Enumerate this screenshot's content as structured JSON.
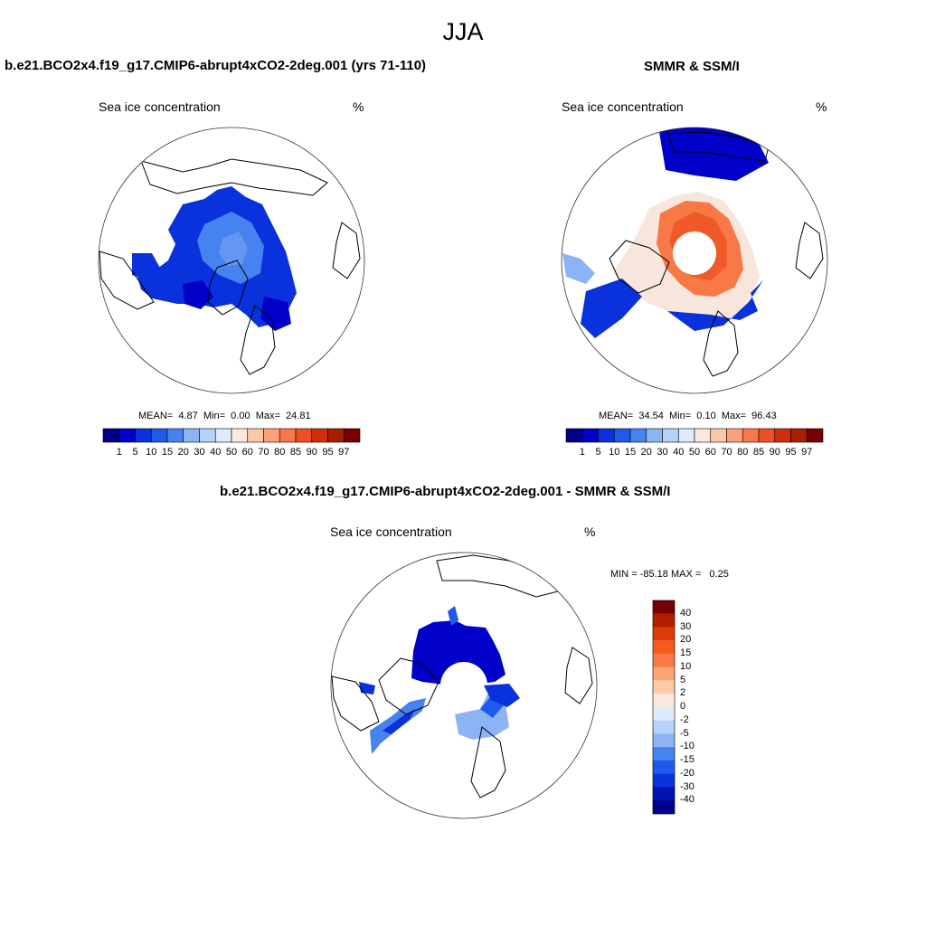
{
  "figure": {
    "season": "JJA"
  },
  "panels": [
    {
      "id": "model",
      "title": "b.e21.BCO2x4.f19_g17.CMIP6-abrupt4xCO2-2deg.001 (yrs 71-110)",
      "left_label": "Sea ice concentration",
      "right_label": "%",
      "stats": {
        "mean_label": "MEAN=",
        "mean": "4.87",
        "min_label": "Min=",
        "min": "0.00",
        "max_label": "Max=",
        "max": "24.81"
      }
    },
    {
      "id": "obs",
      "title": "SMMR & SSM/I",
      "left_label": "Sea ice concentration",
      "right_label": "%",
      "stats": {
        "mean_label": "MEAN=",
        "mean": "34.54",
        "min_label": "Min=",
        "min": "0.10",
        "max_label": "Max=",
        "max": "96.43"
      }
    },
    {
      "id": "diff",
      "title": "b.e21.BCO2x4.f19_g17.CMIP6-abrupt4xCO2-2deg.001 - SMMR & SSM/I",
      "left_label": "Sea ice concentration",
      "right_label": "%",
      "minmax_text": "MIN = -85.18 MAX =   0.25"
    }
  ],
  "colorbar_abs": {
    "ticks": [
      "1",
      "5",
      "10",
      "15",
      "20",
      "30",
      "40",
      "50",
      "60",
      "70",
      "80",
      "85",
      "90",
      "95",
      "97"
    ],
    "colors": [
      "#00008b",
      "#0000c8",
      "#0a32dc",
      "#1e5aeb",
      "#4682f0",
      "#8cb4f5",
      "#b4d2fa",
      "#dcebfd",
      "#fde8dc",
      "#fcc8aa",
      "#fba078",
      "#f8784b",
      "#f04e23",
      "#d22d0a",
      "#aa1e00",
      "#780000"
    ]
  },
  "colorbar_diff": {
    "ticks": [
      "40",
      "30",
      "20",
      "15",
      "10",
      "5",
      "2",
      "0",
      "-2",
      "-5",
      "-10",
      "-15",
      "-20",
      "-30",
      "-40"
    ],
    "colors": [
      "#780000",
      "#b41e00",
      "#dc3c0a",
      "#f55a1e",
      "#f87846",
      "#fba478",
      "#fccca8",
      "#fde8dc",
      "#dcebfd",
      "#b4d2fa",
      "#8cb4f5",
      "#4682f0",
      "#1e5aeb",
      "#0a32dc",
      "#0014b4",
      "#00008b"
    ]
  }
}
